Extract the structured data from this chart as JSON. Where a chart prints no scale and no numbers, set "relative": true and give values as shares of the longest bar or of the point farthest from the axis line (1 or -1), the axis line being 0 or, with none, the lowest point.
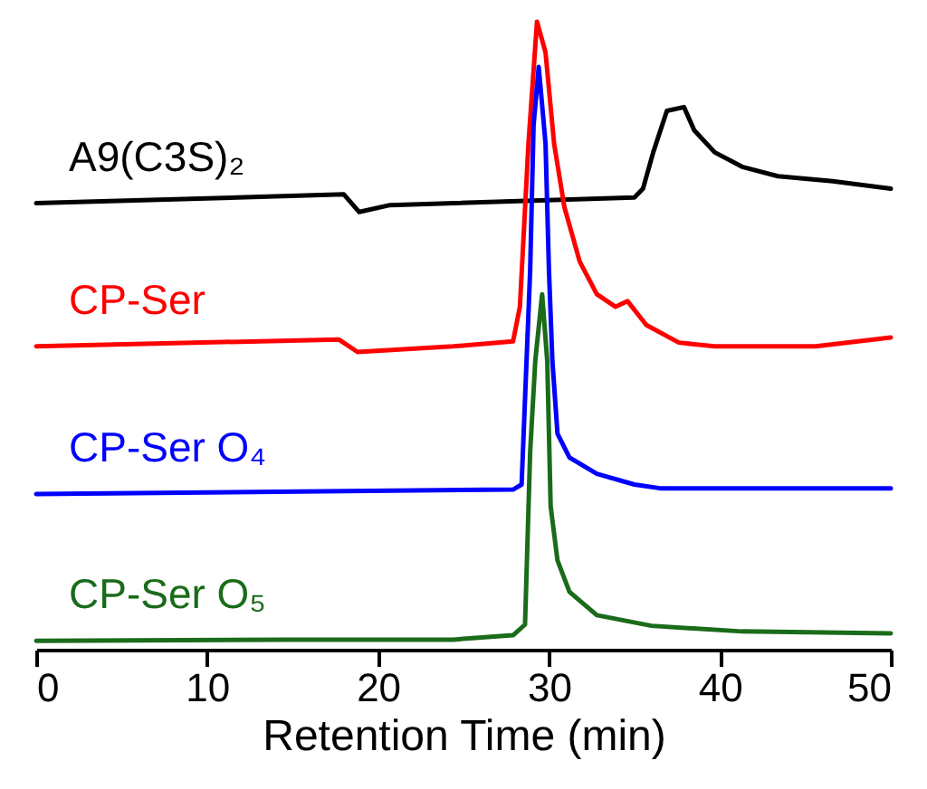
{
  "chart_data": {
    "type": "line",
    "relative": true,
    "xlabel": "Retention Time (min)",
    "xlim": [
      0,
      50
    ],
    "xticks": [
      0,
      10,
      20,
      30,
      40,
      50
    ],
    "legend": false,
    "grid": false,
    "line_style": "solid",
    "series": [
      {
        "name": "A9(C3S)₂",
        "color": "#000000",
        "x": [
          0,
          18.0,
          18.9,
          20.7,
          35.0,
          35.5,
          36.1,
          36.9,
          37.9,
          38.5,
          39.7,
          41.3,
          43.4,
          46.6,
          50
        ],
        "values": [
          0.711,
          0.725,
          0.697,
          0.708,
          0.72,
          0.734,
          0.792,
          0.858,
          0.864,
          0.827,
          0.792,
          0.769,
          0.754,
          0.746,
          0.734
        ]
      },
      {
        "name": "CP-Ser",
        "color": "#ff0000",
        "x": [
          0,
          17.7,
          18.8,
          24.4,
          27.9,
          28.3,
          28.8,
          29.3,
          29.8,
          30.3,
          30.9,
          31.8,
          32.8,
          33.9,
          34.6,
          35.7,
          37.6,
          39.7,
          45.6,
          50
        ],
        "values": [
          0.483,
          0.494,
          0.474,
          0.483,
          0.491,
          0.546,
          0.806,
          1,
          0.951,
          0.806,
          0.705,
          0.618,
          0.566,
          0.546,
          0.555,
          0.517,
          0.489,
          0.483,
          0.483,
          0.497
        ]
      },
      {
        "name": "CP-Ser O₄",
        "color": "#0000ff",
        "x": [
          0,
          27.9,
          28.4,
          28.9,
          29.1,
          29.4,
          29.8,
          30.0,
          30.2,
          30.5,
          31.2,
          32.8,
          35.0,
          36.5,
          50
        ],
        "values": [
          0.248,
          0.255,
          0.263,
          0.604,
          0.835,
          0.928,
          0.806,
          0.604,
          0.46,
          0.344,
          0.306,
          0.28,
          0.263,
          0.257,
          0.257
        ]
      },
      {
        "name": "CP-Ser O₅",
        "color": "#1a6b1a",
        "x": [
          0,
          14.5,
          24.4,
          27.9,
          28.6,
          28.9,
          29.2,
          29.6,
          29.9,
          30.1,
          30.5,
          31.2,
          32.8,
          36.0,
          41.3,
          50
        ],
        "values": [
          0.014,
          0.016,
          0.016,
          0.023,
          0.04,
          0.315,
          0.46,
          0.566,
          0.46,
          0.228,
          0.142,
          0.092,
          0.055,
          0.038,
          0.029,
          0.026
        ]
      }
    ]
  }
}
